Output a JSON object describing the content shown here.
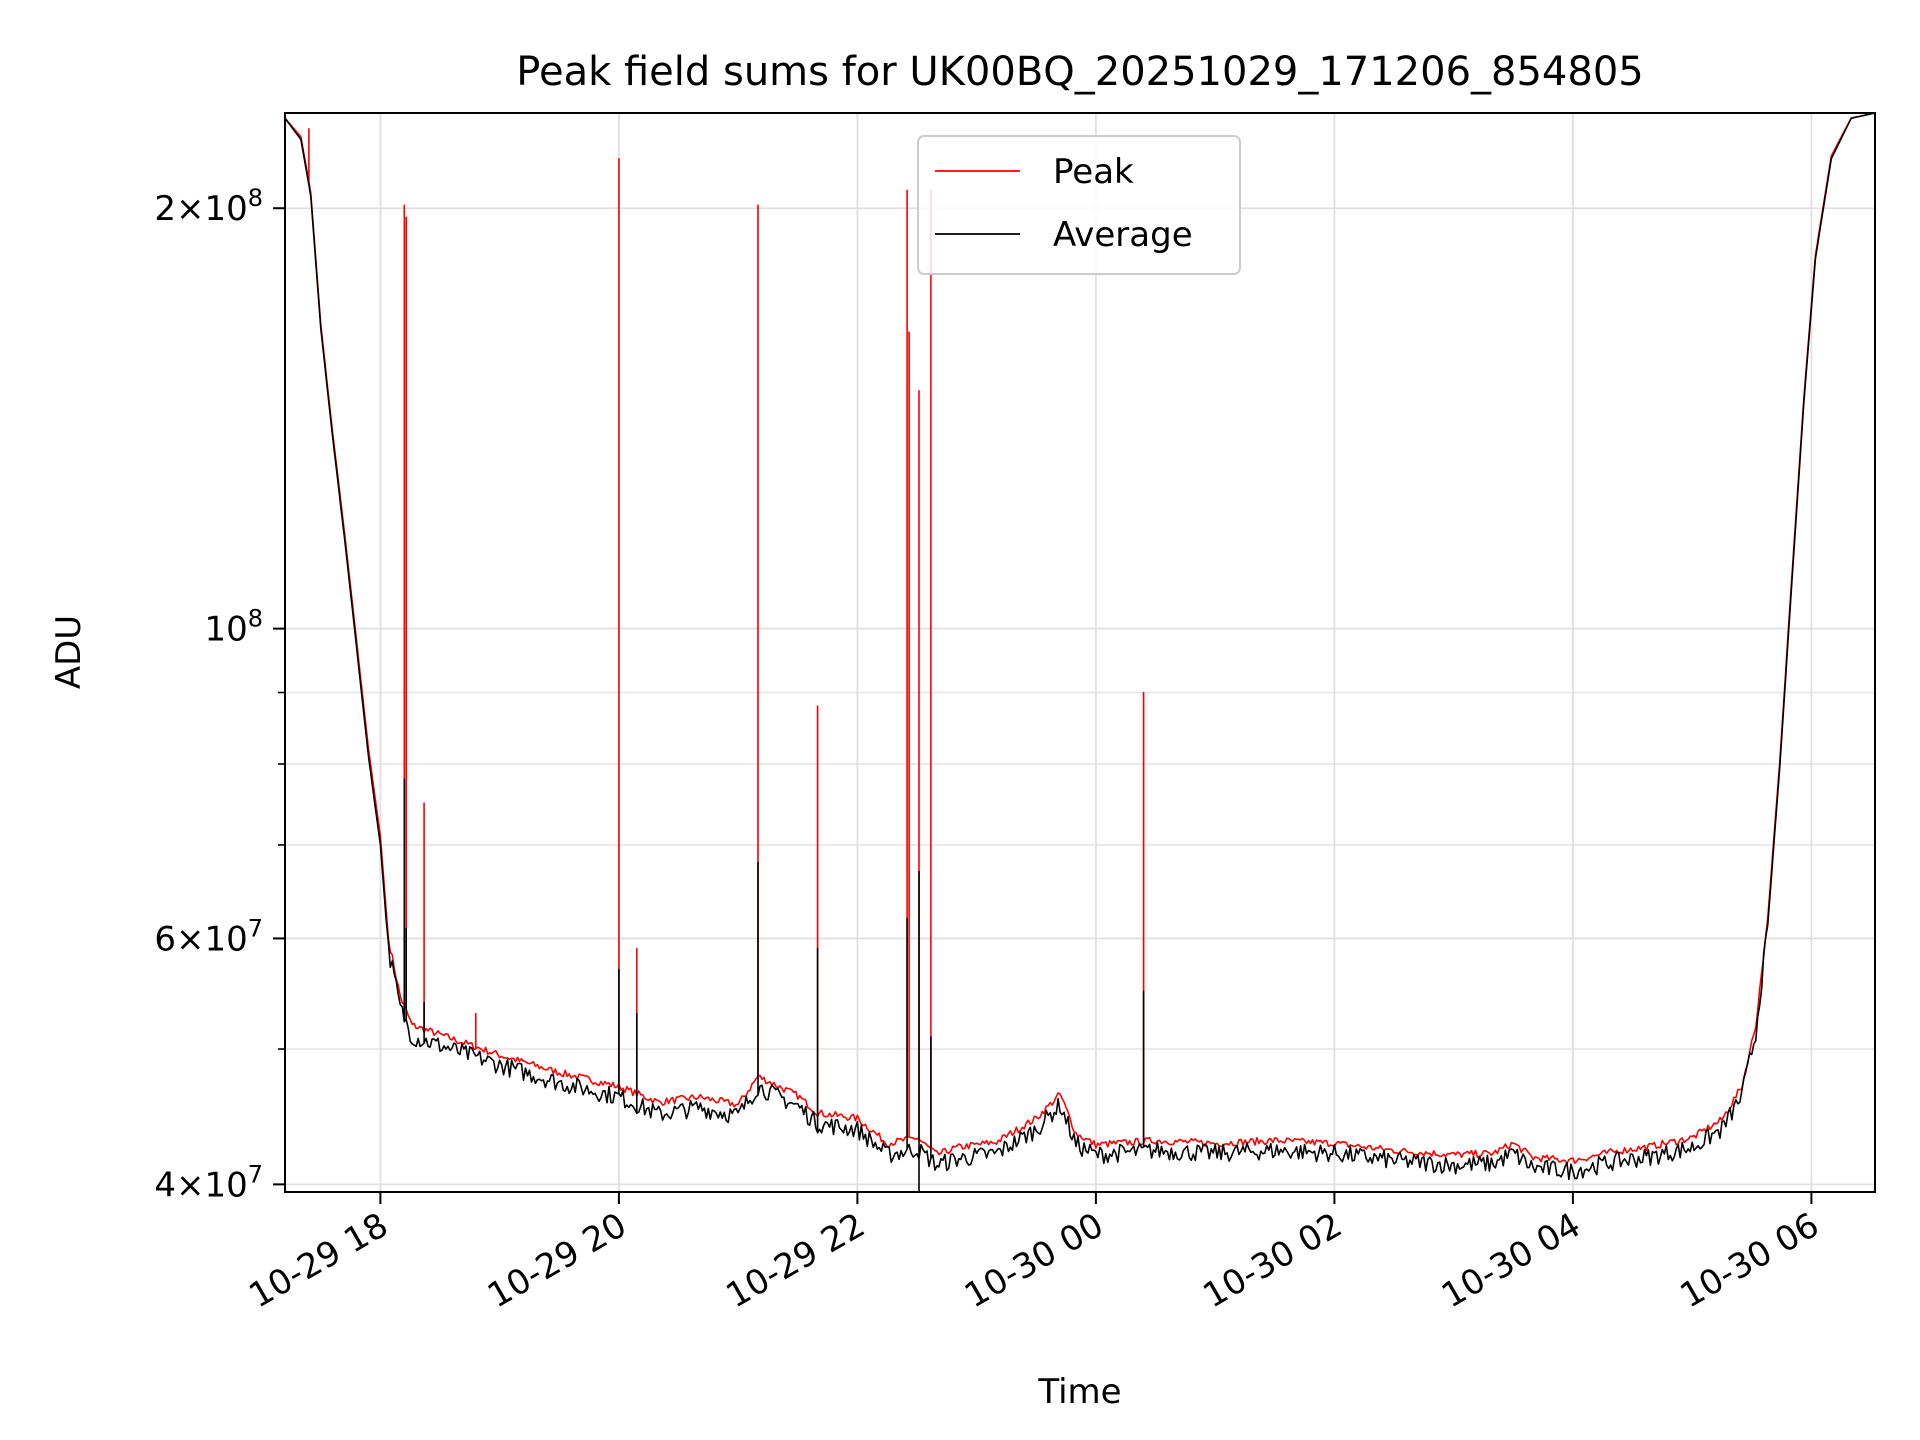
{
  "chart_data": {
    "type": "line",
    "title": "Peak field sums for UK00BQ_20251029_171206_854805",
    "xlabel": "Time",
    "ylabel": "ADU",
    "yscale": "log",
    "grid": true,
    "legend_placement": "upper-center",
    "xlim": [
      "2025-10-29 17:12",
      "2025-10-30 06:32"
    ],
    "ylim": [
      39500000,
      234000000
    ],
    "x_ticks": [
      {
        "value": "2025-10-29 18:00",
        "label": "10-29 18"
      },
      {
        "value": "2025-10-29 20:00",
        "label": "10-29 20"
      },
      {
        "value": "2025-10-29 22:00",
        "label": "10-29 22"
      },
      {
        "value": "2025-10-30 00:00",
        "label": "10-30 00"
      },
      {
        "value": "2025-10-30 02:00",
        "label": "10-30 02"
      },
      {
        "value": "2025-10-30 04:00",
        "label": "10-30 04"
      },
      {
        "value": "2025-10-30 06:00",
        "label": "10-30 06"
      }
    ],
    "y_ticks": [
      {
        "value": 40000000,
        "base": "4",
        "mult": "×10",
        "exp": "7"
      },
      {
        "value": 60000000,
        "base": "6",
        "mult": "×10",
        "exp": "7"
      },
      {
        "value": 100000000,
        "base": "",
        "mult": "10",
        "exp": "8"
      },
      {
        "value": 200000000,
        "base": "2",
        "mult": "×10",
        "exp": "8"
      }
    ],
    "series": [
      {
        "name": "Peak",
        "color": "#ff0000",
        "points": [
          [
            "2025-10-29 17:12",
            232000000
          ],
          [
            "2025-10-29 17:20",
            225000000
          ],
          [
            "2025-10-29 17:25",
            205000000
          ],
          [
            "2025-10-29 17:30",
            165000000
          ],
          [
            "2025-10-29 17:36",
            138000000
          ],
          [
            "2025-10-29 17:42",
            117000000
          ],
          [
            "2025-10-29 17:48",
            98000000
          ],
          [
            "2025-10-29 17:54",
            82000000
          ],
          [
            "2025-10-29 18:00",
            71000000
          ],
          [
            "2025-10-29 18:04",
            60000000
          ],
          [
            "2025-10-29 18:10",
            54500000
          ],
          [
            "2025-10-29 18:16",
            52000000
          ],
          [
            "2025-10-29 18:30",
            51200000
          ],
          [
            "2025-10-29 19:00",
            49500000
          ],
          [
            "2025-10-29 19:30",
            48100000
          ],
          [
            "2025-10-29 20:00",
            47000000
          ],
          [
            "2025-10-29 20:20",
            45800000
          ],
          [
            "2025-10-29 20:40",
            46200000
          ],
          [
            "2025-10-29 21:00",
            45600000
          ],
          [
            "2025-10-29 21:10",
            47800000
          ],
          [
            "2025-10-29 21:30",
            46300000
          ],
          [
            "2025-10-29 21:40",
            45000000
          ],
          [
            "2025-10-29 22:00",
            44600000
          ],
          [
            "2025-10-29 22:15",
            42800000
          ],
          [
            "2025-10-29 22:30",
            43200000
          ],
          [
            "2025-10-29 22:40",
            42000000
          ],
          [
            "2025-10-29 22:50",
            42500000
          ],
          [
            "2025-10-29 23:10",
            42900000
          ],
          [
            "2025-10-29 23:30",
            44600000
          ],
          [
            "2025-10-29 23:42",
            46400000
          ],
          [
            "2025-10-29 23:50",
            43500000
          ],
          [
            "2025-10-30 00:00",
            42700000
          ],
          [
            "2025-10-30 00:30",
            43000000
          ],
          [
            "2025-10-30 01:00",
            42800000
          ],
          [
            "2025-10-30 01:30",
            43000000
          ],
          [
            "2025-10-30 02:00",
            42800000
          ],
          [
            "2025-10-30 02:30",
            42300000
          ],
          [
            "2025-10-30 03:00",
            42000000
          ],
          [
            "2025-10-30 03:20",
            42100000
          ],
          [
            "2025-10-30 03:30",
            42800000
          ],
          [
            "2025-10-30 03:40",
            41800000
          ],
          [
            "2025-10-30 04:00",
            41600000
          ],
          [
            "2025-10-30 04:20",
            42200000
          ],
          [
            "2025-10-30 04:40",
            42600000
          ],
          [
            "2025-10-30 05:00",
            43200000
          ],
          [
            "2025-10-30 05:15",
            44500000
          ],
          [
            "2025-10-30 05:25",
            47000000
          ],
          [
            "2025-10-30 05:32",
            52000000
          ],
          [
            "2025-10-30 05:38",
            62000000
          ],
          [
            "2025-10-30 05:44",
            80000000
          ],
          [
            "2025-10-30 05:50",
            108000000
          ],
          [
            "2025-10-30 05:56",
            145000000
          ],
          [
            "2025-10-30 06:02",
            185000000
          ],
          [
            "2025-10-30 06:10",
            218000000
          ],
          [
            "2025-10-30 06:20",
            232000000
          ],
          [
            "2025-10-30 06:32",
            234000000
          ]
        ],
        "spikes": [
          [
            "2025-10-29 17:24",
            228000000
          ],
          [
            "2025-10-29 18:12",
            201000000
          ],
          [
            "2025-10-29 18:13",
            197000000
          ],
          [
            "2025-10-29 18:22",
            75000000
          ],
          [
            "2025-10-29 18:48",
            53000000
          ],
          [
            "2025-10-29 20:00",
            217000000
          ],
          [
            "2025-10-29 20:09",
            59000000
          ],
          [
            "2025-10-29 21:10",
            201000000
          ],
          [
            "2025-10-29 21:40",
            88000000
          ],
          [
            "2025-10-29 22:25",
            206000000
          ],
          [
            "2025-10-29 22:26",
            163000000
          ],
          [
            "2025-10-29 22:31",
            148000000
          ],
          [
            "2025-10-29 22:37",
            206000000
          ],
          [
            "2025-10-30 00:24",
            90000000
          ]
        ]
      },
      {
        "name": "Average",
        "color": "#000000",
        "points": [
          [
            "2025-10-29 17:12",
            232000000
          ],
          [
            "2025-10-29 17:20",
            224000000
          ],
          [
            "2025-10-29 17:25",
            204000000
          ],
          [
            "2025-10-29 17:30",
            164000000
          ],
          [
            "2025-10-29 17:36",
            137000000
          ],
          [
            "2025-10-29 17:42",
            116000000
          ],
          [
            "2025-10-29 17:48",
            97000000
          ],
          [
            "2025-10-29 17:54",
            81000000
          ],
          [
            "2025-10-29 18:00",
            70000000
          ],
          [
            "2025-10-29 18:04",
            59000000
          ],
          [
            "2025-10-29 18:10",
            53500000
          ],
          [
            "2025-10-29 18:16",
            51000000
          ],
          [
            "2025-10-29 18:30",
            50300000
          ],
          [
            "2025-10-29 19:00",
            48700000
          ],
          [
            "2025-10-29 19:30",
            47300000
          ],
          [
            "2025-10-29 20:00",
            46200000
          ],
          [
            "2025-10-29 20:20",
            44900000
          ],
          [
            "2025-10-29 20:40",
            45400000
          ],
          [
            "2025-10-29 21:00",
            44800000
          ],
          [
            "2025-10-29 21:10",
            47000000
          ],
          [
            "2025-10-29 21:30",
            45500000
          ],
          [
            "2025-10-29 21:40",
            44200000
          ],
          [
            "2025-10-29 22:00",
            43800000
          ],
          [
            "2025-10-29 22:15",
            42000000
          ],
          [
            "2025-10-29 22:30",
            42400000
          ],
          [
            "2025-10-29 22:40",
            41300000
          ],
          [
            "2025-10-29 22:50",
            41700000
          ],
          [
            "2025-10-29 23:10",
            42100000
          ],
          [
            "2025-10-29 23:30",
            43800000
          ],
          [
            "2025-10-29 23:42",
            45600000
          ],
          [
            "2025-10-29 23:50",
            42700000
          ],
          [
            "2025-10-30 00:00",
            42000000
          ],
          [
            "2025-10-30 00:30",
            42300000
          ],
          [
            "2025-10-30 01:00",
            42100000
          ],
          [
            "2025-10-30 01:30",
            42300000
          ],
          [
            "2025-10-30 02:00",
            42100000
          ],
          [
            "2025-10-30 02:30",
            41600000
          ],
          [
            "2025-10-30 03:00",
            41300000
          ],
          [
            "2025-10-30 03:20",
            41400000
          ],
          [
            "2025-10-30 03:30",
            42100000
          ],
          [
            "2025-10-30 03:40",
            41100000
          ],
          [
            "2025-10-30 04:00",
            40900000
          ],
          [
            "2025-10-30 04:20",
            41500000
          ],
          [
            "2025-10-30 04:40",
            41900000
          ],
          [
            "2025-10-30 05:00",
            42500000
          ],
          [
            "2025-10-30 05:15",
            43800000
          ],
          [
            "2025-10-30 05:25",
            46300000
          ],
          [
            "2025-10-30 05:32",
            51300000
          ],
          [
            "2025-10-30 05:38",
            61300000
          ],
          [
            "2025-10-30 05:44",
            79300000
          ],
          [
            "2025-10-30 05:50",
            107000000
          ],
          [
            "2025-10-30 05:56",
            144000000
          ],
          [
            "2025-10-30 06:02",
            184000000
          ],
          [
            "2025-10-30 06:10",
            217000000
          ],
          [
            "2025-10-30 06:20",
            232000000
          ],
          [
            "2025-10-30 06:32",
            234000000
          ]
        ],
        "spikes": [
          [
            "2025-10-29 18:12",
            78000000
          ],
          [
            "2025-10-29 18:13",
            61000000
          ],
          [
            "2025-10-29 18:22",
            54000000
          ],
          [
            "2025-10-29 20:00",
            57000000
          ],
          [
            "2025-10-29 20:09",
            53000000
          ],
          [
            "2025-10-29 21:10",
            68000000
          ],
          [
            "2025-10-29 21:40",
            59000000
          ],
          [
            "2025-10-29 22:25",
            62000000
          ],
          [
            "2025-10-29 22:31",
            67000000
          ],
          [
            "2025-10-29 22:37",
            51000000
          ],
          [
            "2025-10-30 00:24",
            55000000
          ]
        ],
        "dips": [
          [
            "2025-10-29 22:31",
            39500000
          ]
        ]
      }
    ]
  }
}
